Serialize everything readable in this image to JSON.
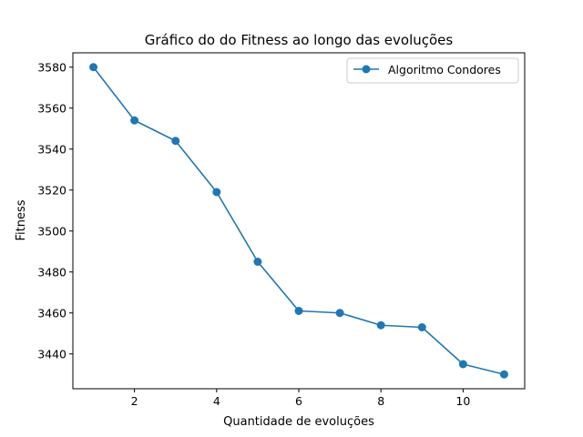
{
  "chart_data": {
    "type": "line",
    "title": "Gráfico do do Fitness ao longo das evoluções",
    "xlabel": "Quantidade de evoluções",
    "ylabel": "Fitness",
    "xlim": [
      0.5,
      11.5
    ],
    "ylim": [
      3423,
      3587
    ],
    "xticks": [
      2,
      4,
      6,
      8,
      10
    ],
    "yticks": [
      3440,
      3460,
      3480,
      3500,
      3520,
      3540,
      3560,
      3580
    ],
    "grid": false,
    "legend_position": "top-right",
    "series": [
      {
        "name": "Algoritmo Condores",
        "color": "#1f77b4",
        "marker": "circle",
        "x": [
          1,
          2,
          3,
          4,
          5,
          6,
          7,
          8,
          9,
          10,
          11
        ],
        "y": [
          3580,
          3554,
          3544,
          3519,
          3485,
          3461,
          3460,
          3454,
          3453,
          3435,
          3430
        ]
      }
    ]
  }
}
